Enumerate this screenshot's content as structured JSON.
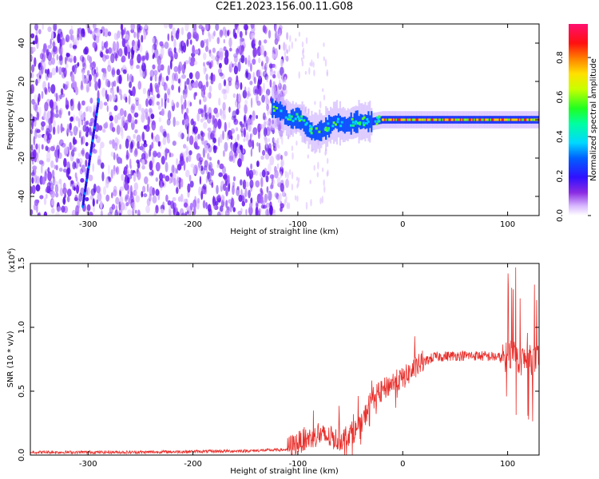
{
  "title": "C2E1.2023.156.00.11.G08",
  "colors": {
    "snr_line": "#e8302c",
    "purple": "#6a10e8",
    "axis": "#000000"
  },
  "chart_data": [
    {
      "type": "heatmap",
      "title": "C2E1.2023.156.00.11.G08",
      "xlabel": "Height of straight line (km)",
      "ylabel": "Frequency (Hz)",
      "xlim": [
        -355,
        130
      ],
      "ylim": [
        -50,
        50
      ],
      "x_ticks": [
        -300,
        -200,
        -100,
        0,
        100
      ],
      "y_ticks": [
        -40,
        -20,
        0,
        20,
        40
      ],
      "colorbar": {
        "label": "Normalized spectral amplitude",
        "range": [
          0,
          1
        ],
        "ticks": [
          "0.0",
          "0.2",
          "0.4",
          "0.6",
          "0.8"
        ]
      },
      "features": {
        "noise_region_x": [
          -355,
          -110
        ],
        "signal_start_x": -125,
        "strong_line_start_x": -20,
        "streak": {
          "x": [
            -305,
            -290
          ],
          "y": [
            -45,
            10
          ]
        },
        "centerline": [
          [
            -125,
            6
          ],
          [
            -115,
            4
          ],
          [
            -110,
            0
          ],
          [
            -100,
            1
          ],
          [
            -95,
            -2
          ],
          [
            -90,
            -5
          ],
          [
            -85,
            -7
          ],
          [
            -80,
            -6
          ],
          [
            -75,
            -5
          ],
          [
            -70,
            -3
          ],
          [
            -65,
            -1
          ],
          [
            -60,
            -2
          ],
          [
            -55,
            -3
          ],
          [
            -50,
            -2
          ],
          [
            -45,
            -1
          ],
          [
            -40,
            -1
          ],
          [
            -30,
            -1
          ],
          [
            -20,
            0
          ],
          [
            0,
            0
          ],
          [
            50,
            0
          ],
          [
            100,
            0
          ],
          [
            130,
            0
          ]
        ]
      }
    },
    {
      "type": "line",
      "xlabel": "Height of straight line (km)",
      "ylabel": "SNR (10 * v/v)",
      "y_multiplier": "(x10",
      "y_multiplier_exp": "4",
      "xlim": [
        -355,
        130
      ],
      "ylim": [
        0,
        1.5
      ],
      "x_ticks": [
        -300,
        -200,
        -100,
        0,
        100
      ],
      "y_ticks": [
        0.0,
        0.5,
        1.0,
        1.5
      ],
      "y_tick_labels": [
        "0.0",
        "0.5",
        "1.0",
        "1.5"
      ],
      "series": [
        {
          "values_envelope": [
            [
              -355,
              0.02
            ],
            [
              -250,
              0.02
            ],
            [
              -150,
              0.03
            ],
            [
              -110,
              0.04
            ],
            [
              -100,
              0.08
            ],
            [
              -80,
              0.14
            ],
            [
              -60,
              0.1
            ],
            [
              -40,
              0.2
            ],
            [
              -30,
              0.42
            ],
            [
              -20,
              0.48
            ],
            [
              -10,
              0.55
            ],
            [
              0,
              0.58
            ],
            [
              10,
              0.65
            ],
            [
              20,
              0.72
            ],
            [
              30,
              0.76
            ],
            [
              50,
              0.77
            ],
            [
              70,
              0.77
            ],
            [
              90,
              0.76
            ],
            [
              100,
              0.74
            ],
            [
              105,
              0.8
            ],
            [
              110,
              0.72
            ],
            [
              115,
              0.72
            ],
            [
              130,
              0.72
            ]
          ]
        }
      ]
    }
  ]
}
